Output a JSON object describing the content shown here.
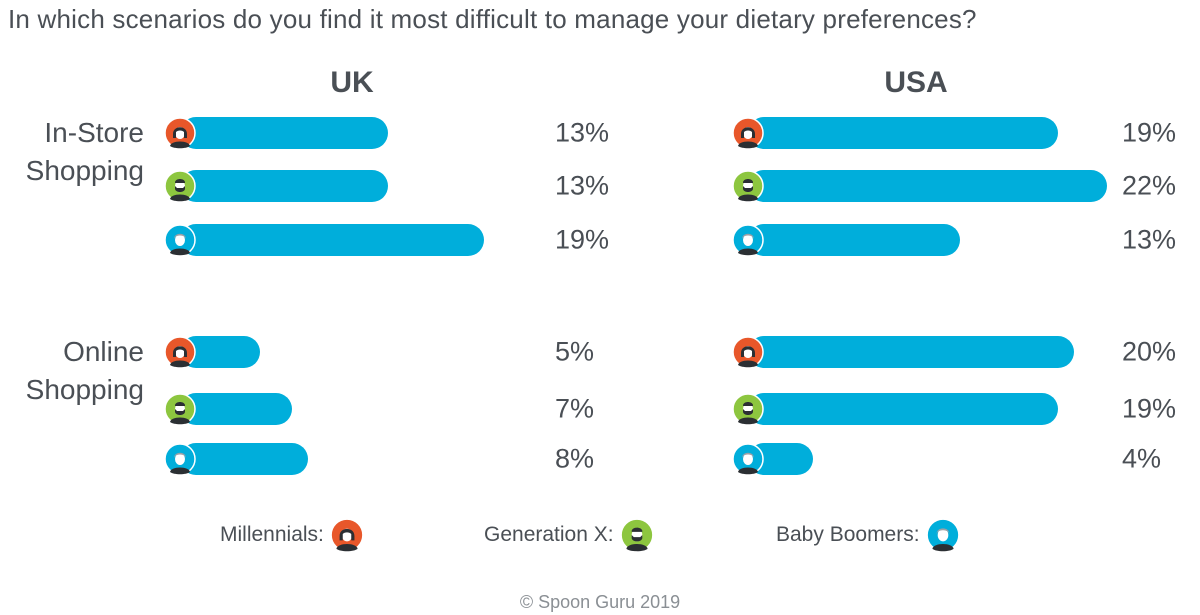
{
  "title": "In which scenarios do you find it most difficult to manage your dietary preferences?",
  "chart_data": {
    "type": "bar",
    "orientation": "horizontal",
    "panels": [
      "UK",
      "USA"
    ],
    "categories": [
      "In-Store Shopping",
      "Online Shopping"
    ],
    "category_lines": [
      [
        "In-Store",
        "Shopping"
      ],
      [
        "Online",
        "Shopping"
      ]
    ],
    "series": [
      {
        "name": "Millennials",
        "color": "#e8572a",
        "UK": [
          13,
          5
        ],
        "USA": [
          19,
          20
        ]
      },
      {
        "name": "Generation X",
        "color": "#8dc63f",
        "UK": [
          13,
          7
        ],
        "USA": [
          22,
          19
        ]
      },
      {
        "name": "Baby Boomers",
        "color": "#00aedb",
        "UK": [
          19,
          8
        ],
        "USA": [
          13,
          4
        ]
      }
    ],
    "value_suffix": "%",
    "bar_color": "#00aedb",
    "legend_position": "bottom"
  },
  "legend": [
    {
      "label": "Millennials:",
      "icon": "millennial-avatar-icon",
      "color": "#e8572a"
    },
    {
      "label": "Generation X:",
      "icon": "generation-x-avatar-icon",
      "color": "#8dc63f"
    },
    {
      "label": "Baby Boomers:",
      "icon": "baby-boomer-avatar-icon",
      "color": "#00aedb"
    }
  ],
  "footer": "© Spoon Guru 2019"
}
